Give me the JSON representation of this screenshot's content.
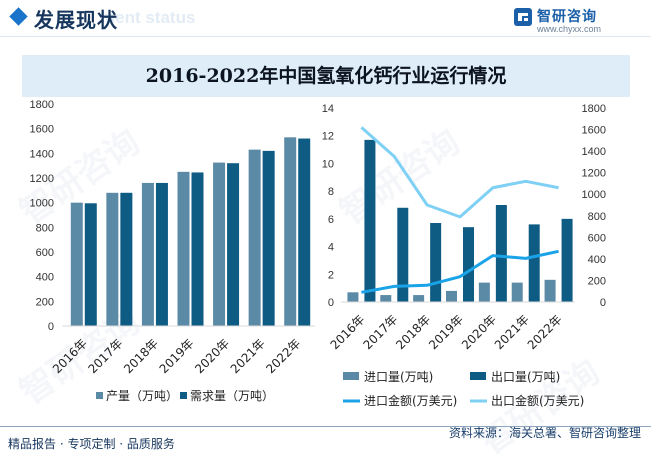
{
  "header": {
    "section_title": "发展现状",
    "section_subtitle": "ment status",
    "brand_name": "智研咨询",
    "brand_url": "www.chyxx.com"
  },
  "colors": {
    "production": "#5b8aa7",
    "demand": "#0e5b84",
    "import_volume": "#5b8aa7",
    "export_volume": "#0e5b84",
    "import_value_line": "#1ba3e8",
    "export_value_line": "#7fd0f5"
  },
  "chart_data": [
    {
      "type": "bar",
      "title": "2016-2022年中国氢氧化钙行业运行情况",
      "categories": [
        "2016年",
        "2017年",
        "2018年",
        "2019年",
        "2020年",
        "2021年",
        "2022年"
      ],
      "series": [
        {
          "name": "产量（万吨）",
          "values": [
            1000,
            1080,
            1160,
            1250,
            1325,
            1430,
            1530
          ]
        },
        {
          "name": "需求量（万吨）",
          "values": [
            995,
            1080,
            1160,
            1245,
            1320,
            1420,
            1520
          ]
        }
      ],
      "y_ticks": [
        "0",
        "200",
        "400",
        "600",
        "800",
        "1000",
        "1200",
        "1400",
        "1600",
        "1800"
      ],
      "ylim": [
        0,
        1800
      ],
      "legend_position": "bottom"
    },
    {
      "type": "bar+line",
      "categories": [
        "2016年",
        "2017年",
        "2018年",
        "2019年",
        "2020年",
        "2021年",
        "2022年"
      ],
      "bar_series": [
        {
          "name": "进口量(万吨)",
          "values": [
            0.7,
            0.5,
            0.5,
            0.8,
            1.4,
            1.4,
            1.6
          ]
        },
        {
          "name": "出口量(万吨)",
          "values": [
            11.7,
            6.8,
            5.7,
            5.4,
            7.0,
            5.6,
            6.0
          ]
        }
      ],
      "line_series": [
        {
          "name": "进口金额(万美元)",
          "values": [
            90,
            145,
            155,
            235,
            430,
            405,
            470
          ]
        },
        {
          "name": "出口金额(万美元)",
          "values": [
            1620,
            1350,
            900,
            790,
            1060,
            1120,
            1060
          ]
        }
      ],
      "y_left_ticks": [
        "0",
        "2",
        "4",
        "6",
        "8",
        "10",
        "12",
        "14"
      ],
      "y_left_lim": [
        0,
        14
      ],
      "y_right_ticks": [
        "0",
        "200",
        "400",
        "600",
        "800",
        "1000",
        "1200",
        "1400",
        "1600",
        "1800"
      ],
      "y_right_lim": [
        0,
        1800
      ],
      "legend_position": "bottom"
    }
  ],
  "footer": {
    "left_text": "精品报告 · 专项定制 · 品质服务",
    "source_text": "资料来源：海关总署、智研咨询整理"
  },
  "watermark": "智研咨询"
}
